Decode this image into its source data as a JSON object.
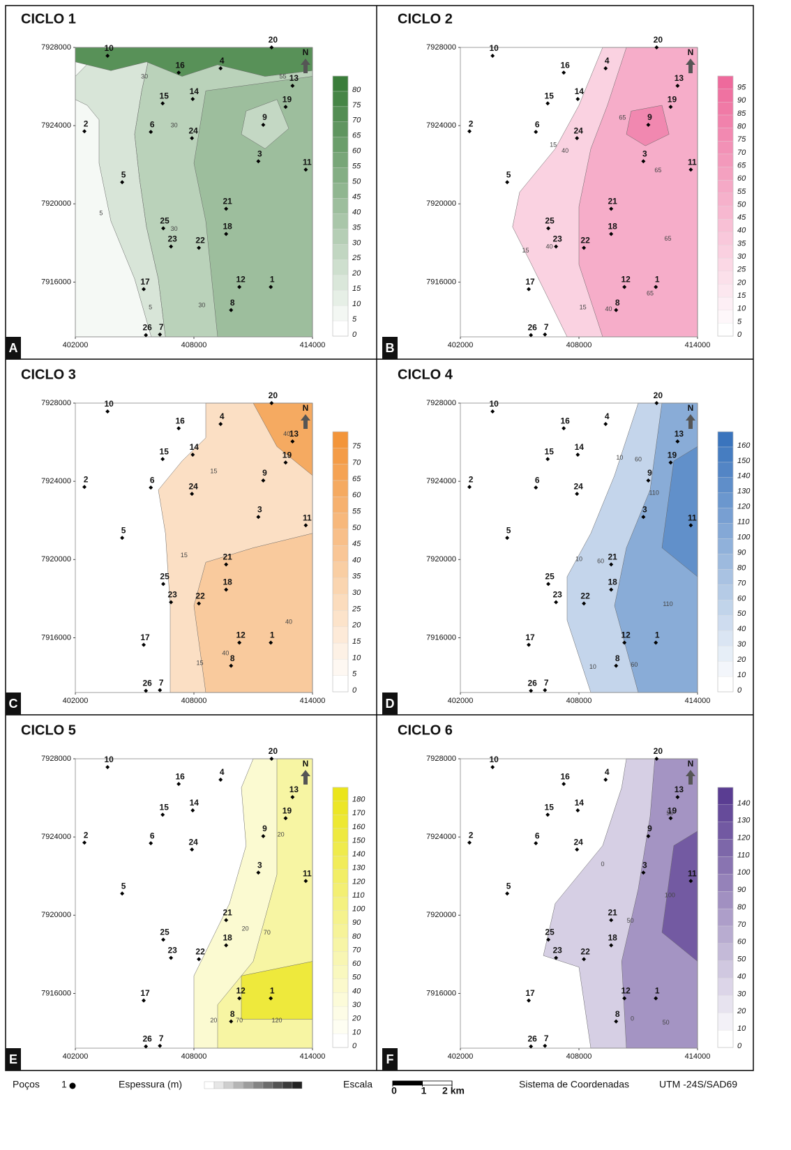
{
  "axes": {
    "xlim": [
      402000,
      414000
    ],
    "ylim": [
      7913200,
      7928000
    ],
    "xticks": [
      402000,
      408000,
      414000
    ],
    "yticks": [
      7916000,
      7920000,
      7924000,
      7928000
    ]
  },
  "north": "N",
  "wells": [
    {
      "label": "10",
      "x": 403630,
      "y": 7927570
    },
    {
      "label": "16",
      "x": 407230,
      "y": 7926710
    },
    {
      "label": "4",
      "x": 409350,
      "y": 7926930
    },
    {
      "label": "20",
      "x": 411930,
      "y": 7928000
    },
    {
      "label": "13",
      "x": 412990,
      "y": 7926040
    },
    {
      "label": "15",
      "x": 406420,
      "y": 7925140
    },
    {
      "label": "14",
      "x": 407940,
      "y": 7925360
    },
    {
      "label": "19",
      "x": 412640,
      "y": 7924960
    },
    {
      "label": "2",
      "x": 402460,
      "y": 7923710
    },
    {
      "label": "6",
      "x": 405820,
      "y": 7923680
    },
    {
      "label": "24",
      "x": 407900,
      "y": 7923360
    },
    {
      "label": "9",
      "x": 411510,
      "y": 7924040
    },
    {
      "label": "3",
      "x": 411260,
      "y": 7922180
    },
    {
      "label": "11",
      "x": 413660,
      "y": 7921750
    },
    {
      "label": "5",
      "x": 404370,
      "y": 7921110
    },
    {
      "label": "21",
      "x": 409630,
      "y": 7919750
    },
    {
      "label": "25",
      "x": 406450,
      "y": 7918750
    },
    {
      "label": "18",
      "x": 409630,
      "y": 7918460
    },
    {
      "label": "23",
      "x": 406840,
      "y": 7917820
    },
    {
      "label": "22",
      "x": 408250,
      "y": 7917750
    },
    {
      "label": "17",
      "x": 405460,
      "y": 7915640
    },
    {
      "label": "12",
      "x": 410300,
      "y": 7915750
    },
    {
      "label": "1",
      "x": 411890,
      "y": 7915750
    },
    {
      "label": "8",
      "x": 409880,
      "y": 7914570
    },
    {
      "label": "26",
      "x": 405570,
      "y": 7913290
    },
    {
      "label": "7",
      "x": 406280,
      "y": 7913320
    }
  ],
  "panels": [
    {
      "title": "CICLO 1",
      "letter": "A",
      "color": "#3a7d3a",
      "scale_ticks": [
        0,
        5,
        10,
        15,
        20,
        25,
        30,
        35,
        40,
        45,
        50,
        55,
        60,
        65,
        70,
        75,
        80
      ],
      "contour_labels": [
        30,
        55,
        30,
        5,
        30,
        5,
        30
      ]
    },
    {
      "title": "CICLO 2",
      "letter": "B",
      "color": "#ee6a9c",
      "scale_ticks": [
        0,
        5,
        10,
        15,
        20,
        25,
        30,
        35,
        40,
        45,
        50,
        55,
        60,
        65,
        70,
        75,
        80,
        85,
        90,
        95
      ],
      "contour_labels": [
        15,
        40,
        65,
        65,
        15,
        40,
        65,
        15,
        40,
        65
      ]
    },
    {
      "title": "CICLO 3",
      "letter": "C",
      "color": "#f3953a",
      "scale_ticks": [
        0,
        5,
        10,
        15,
        20,
        25,
        30,
        35,
        40,
        45,
        50,
        55,
        60,
        65,
        70,
        75
      ],
      "contour_labels": [
        40,
        15,
        15,
        40,
        40,
        15
      ]
    },
    {
      "title": "CICLO 4",
      "letter": "D",
      "color": "#3a74bd",
      "scale_ticks": [
        0,
        10,
        20,
        30,
        40,
        50,
        60,
        70,
        80,
        90,
        100,
        110,
        120,
        130,
        140,
        150,
        160
      ],
      "contour_labels": [
        10,
        60,
        110,
        10,
        60,
        110,
        10,
        60
      ]
    },
    {
      "title": "CICLO 5",
      "letter": "E",
      "color": "#ebe51a",
      "scale_ticks": [
        0,
        10,
        20,
        30,
        40,
        50,
        60,
        70,
        80,
        90,
        100,
        110,
        120,
        130,
        140,
        150,
        160,
        170,
        180
      ],
      "contour_labels": [
        20,
        20,
        70,
        20,
        70,
        120
      ]
    },
    {
      "title": "CICLO 6",
      "letter": "F",
      "color": "#5a3d92",
      "scale_ticks": [
        0,
        10,
        20,
        30,
        40,
        50,
        60,
        70,
        80,
        90,
        100,
        110,
        120,
        130,
        140
      ],
      "contour_labels": [
        50,
        0,
        50,
        100,
        0,
        50
      ]
    }
  ],
  "footer": {
    "wells_label": "Poços",
    "well_example": "1",
    "thickness_label": "Espessura (m)",
    "scale_label": "Escala",
    "scale_ticks": [
      0,
      1,
      {
        "value": 2,
        "label": "2 km"
      }
    ],
    "crs_label": "Sistema de Coordenadas",
    "crs": "UTM -24S/SAD69"
  }
}
